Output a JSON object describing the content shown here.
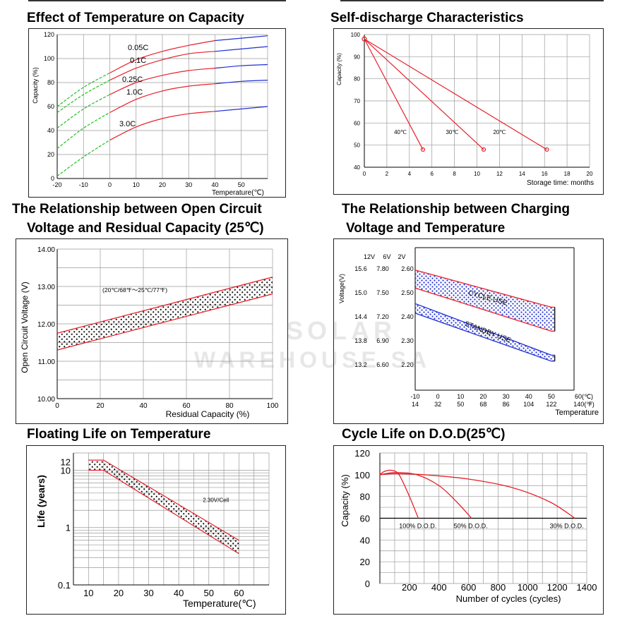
{
  "titles": {
    "t1": "Effect of Temperature on Capacity",
    "t2": "Self-discharge Characteristics",
    "t3a": "The Relationship between Open Circuit",
    "t3b": "Voltage and Residual Capacity (25℃)",
    "t4a": "The Relationship between Charging",
    "t4b": "Voltage and Temperature",
    "t5": "Floating Life on Temperature",
    "t6": "Cycle Life on D.O.D(25℃)"
  },
  "watermark": {
    "line1": "SOLAR",
    "line2": "WAREHOUSE SA"
  },
  "colors": {
    "red": "#e8202a",
    "blue": "#1f2fd6",
    "green": "#1ec21e",
    "grid": "#9a9a9a",
    "dots_dark": "#111111",
    "dots_blue": "#1f2fd6"
  },
  "chart_data": [
    {
      "id": "temp_capacity",
      "type": "line",
      "xlabel": "Temperature(℃)",
      "ylabel": "Capacity (%)",
      "xlim": [
        -20,
        60
      ],
      "ylim": [
        0,
        120
      ],
      "xticks": [
        "-20",
        "-10",
        "0",
        "10",
        "20",
        "30",
        "40",
        "50"
      ],
      "yticks": [
        "0",
        "20",
        "40",
        "60",
        "80",
        "100",
        "120"
      ],
      "segment_colors": {
        "low": "#1ec21e",
        "mid": "#e8202a",
        "high": "#1f2fd6"
      },
      "series": [
        {
          "name": "0.05C",
          "x": [
            -20,
            -10,
            0,
            10,
            20,
            30,
            40,
            50,
            60
          ],
          "y": [
            60,
            76,
            88,
            99,
            106,
            111,
            115,
            117,
            119
          ]
        },
        {
          "name": "0.1C",
          "x": [
            -20,
            -10,
            0,
            10,
            20,
            30,
            40,
            50,
            60
          ],
          "y": [
            55,
            70,
            82,
            92,
            99,
            104,
            106,
            108,
            110
          ]
        },
        {
          "name": "0.25C",
          "x": [
            -20,
            -10,
            0,
            10,
            20,
            30,
            40,
            50,
            60
          ],
          "y": [
            42,
            58,
            70,
            80,
            86,
            90,
            92,
            94,
            95
          ]
        },
        {
          "name": "1.0C",
          "x": [
            -20,
            -10,
            0,
            10,
            20,
            30,
            40,
            50,
            60
          ],
          "y": [
            25,
            42,
            55,
            66,
            73,
            77,
            79,
            81,
            82
          ]
        },
        {
          "name": "3.0C",
          "x": [
            -20,
            -10,
            0,
            10,
            20,
            30,
            40,
            50,
            60
          ],
          "y": [
            2,
            18,
            32,
            43,
            50,
            54,
            56,
            58,
            60
          ]
        }
      ]
    },
    {
      "id": "self_discharge",
      "type": "line",
      "xlabel": "Storage time: months",
      "ylabel": "Capacity (%)",
      "xlim": [
        0,
        20
      ],
      "ylim": [
        40,
        100
      ],
      "xticks": [
        "0",
        "2",
        "4",
        "6",
        "8",
        "10",
        "12",
        "14",
        "16",
        "18",
        "20"
      ],
      "yticks": [
        "40",
        "50",
        "60",
        "70",
        "80",
        "90",
        "100"
      ],
      "series": [
        {
          "name": "40℃",
          "x": [
            0,
            5.2
          ],
          "y": [
            98,
            48
          ]
        },
        {
          "name": "30℃",
          "x": [
            0,
            10.6
          ],
          "y": [
            98,
            48
          ]
        },
        {
          "name": "20℃",
          "x": [
            0,
            16.2
          ],
          "y": [
            98,
            48
          ]
        }
      ]
    },
    {
      "id": "ocv_residual",
      "type": "area",
      "xlabel": "Residual Capacity  (%)",
      "ylabel": "Open Circuit Voltage (V)",
      "xlim": [
        0,
        100
      ],
      "ylim": [
        10,
        14
      ],
      "xticks": [
        "0",
        "20",
        "40",
        "60",
        "80",
        "100"
      ],
      "yticks": [
        "10.00",
        "11.00",
        "12.00",
        "13.00",
        "14.00"
      ],
      "annotation": "(20℃/68℉～25℃/77℉)",
      "band": {
        "x": [
          0,
          100
        ],
        "upper": [
          11.75,
          13.25
        ],
        "lower": [
          11.3,
          12.8
        ]
      }
    },
    {
      "id": "charging_voltage_temp",
      "type": "area",
      "ylabel": "Voltage(V)",
      "xlabel": "Temperature",
      "xlim": [
        -10,
        60
      ],
      "ylim": [
        2.2,
        2.6
      ],
      "xticks": [
        "-10",
        "0",
        "10",
        "20",
        "30",
        "40",
        "50",
        "60(℃)"
      ],
      "xticks_f": [
        "14",
        "32",
        "50",
        "68",
        "86",
        "104",
        "122",
        "140(℉)"
      ],
      "yheaders": [
        "12V",
        "6V",
        "2V"
      ],
      "yticks_12v": [
        "15.6",
        "15.0",
        "14.4",
        "13.8",
        "13.2"
      ],
      "yticks_6v": [
        "7.80",
        "7.50",
        "7.20",
        "6.90",
        "6.60"
      ],
      "yticks_2v": [
        "2.60",
        "2.50",
        "2.40",
        "2.30",
        "2.20"
      ],
      "bands": [
        {
          "name": "CYCLE  USE",
          "x": [
            -10,
            50,
            51.5
          ],
          "upper": [
            2.595,
            2.44,
            2.44
          ],
          "lower": [
            2.52,
            2.34,
            2.34
          ]
        },
        {
          "name": "STANDBY  USE",
          "x": [
            -10,
            50,
            51.5
          ],
          "upper": [
            2.455,
            2.24,
            2.24
          ],
          "lower": [
            2.415,
            2.215,
            2.215
          ]
        }
      ]
    },
    {
      "id": "floating_life",
      "type": "area",
      "xlabel": "Temperature(℃)",
      "ylabel": "Life (years)",
      "xlim": [
        5,
        70
      ],
      "ylim_log": [
        0.1,
        20
      ],
      "xticks": [
        "10",
        "20",
        "30",
        "40",
        "50",
        "60"
      ],
      "yticks": [
        "0.1",
        "1",
        "10",
        "12"
      ],
      "annotation": "2.30V/Cell",
      "band": {
        "x": [
          10,
          15,
          60
        ],
        "upper": [
          15,
          15,
          0.6
        ],
        "lower": [
          10,
          10,
          0.35
        ]
      }
    },
    {
      "id": "cycle_life_dod",
      "type": "line",
      "xlabel": "Number of cycles (cycles)",
      "ylabel": "Capacity  (%)",
      "xlim": [
        0,
        1400
      ],
      "ylim": [
        0,
        120
      ],
      "xticks": [
        "200",
        "400",
        "600",
        "800",
        "1000",
        "1200",
        "1400"
      ],
      "yticks": [
        "0",
        "20",
        "40",
        "60",
        "80",
        "100",
        "120"
      ],
      "series": [
        {
          "name": "100% D.O.D.",
          "x": [
            0,
            30,
            80,
            130,
            200,
            260
          ],
          "y": [
            100,
            103,
            104,
            100,
            80,
            60
          ]
        },
        {
          "name": "50% D.O.D.",
          "x": [
            0,
            100,
            250,
            400,
            520,
            620
          ],
          "y": [
            100,
            102,
            100,
            90,
            75,
            60
          ]
        },
        {
          "name": "30% D.O.D.",
          "x": [
            0,
            100,
            300,
            600,
            900,
            1150,
            1320
          ],
          "y": [
            100,
            101,
            100,
            96,
            88,
            75,
            60
          ]
        }
      ]
    }
  ]
}
